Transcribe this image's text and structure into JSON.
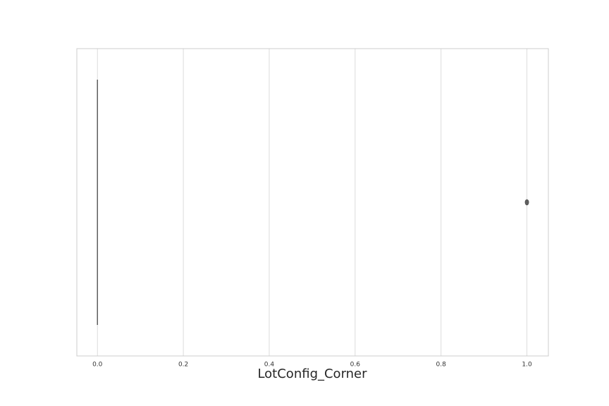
{
  "chart_data": {
    "type": "box",
    "orientation": "horizontal",
    "xlabel": "LotConfig_Corner",
    "xlim": [
      -0.048,
      1.05
    ],
    "xticks": [
      0.0,
      0.2,
      0.4,
      0.6,
      0.8,
      1.0
    ],
    "xtick_labels": [
      "0.0",
      "0.2",
      "0.4",
      "0.6",
      "0.8",
      "1.0"
    ],
    "grid": "vertical",
    "box": {
      "min": 0.0,
      "q1": 0.0,
      "median": 0.0,
      "q3": 0.0,
      "max": 0.0
    },
    "outliers": [
      1.0
    ],
    "colors": {
      "box": "#5f5f5f",
      "grid": "#dcdcdc",
      "frame": "#cccccc"
    }
  }
}
